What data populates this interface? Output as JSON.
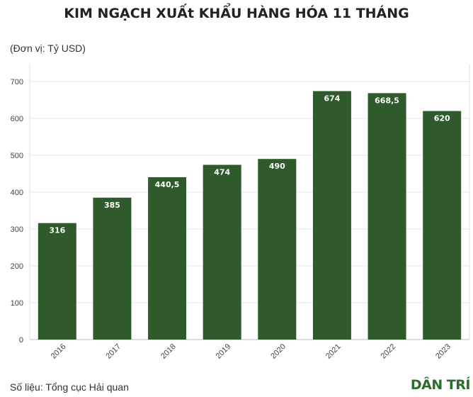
{
  "title": "KIM NGẠCH XUẤt KHẨU HÀNG HÓA 11 THÁNG",
  "unit_label": "(Đơn vị: Tỷ USD)",
  "source": "Số liệu: Tổng cục Hải quan",
  "logo_text": "DÂN TRÍ",
  "chart_data": {
    "type": "bar",
    "categories": [
      "2016",
      "2017",
      "2018",
      "2019",
      "2020",
      "2021",
      "2022",
      "2023"
    ],
    "values": [
      316,
      385,
      440.5,
      474,
      490,
      674,
      668.5,
      620
    ],
    "data_labels": [
      "316",
      "385",
      "440,5",
      "474",
      "490",
      "674",
      "668,5",
      "620"
    ],
    "yticks": [
      0,
      100,
      200,
      300,
      400,
      500,
      600,
      700
    ],
    "ylim": [
      0,
      700
    ],
    "bar_color": "#2f5a2c",
    "grid": true
  }
}
